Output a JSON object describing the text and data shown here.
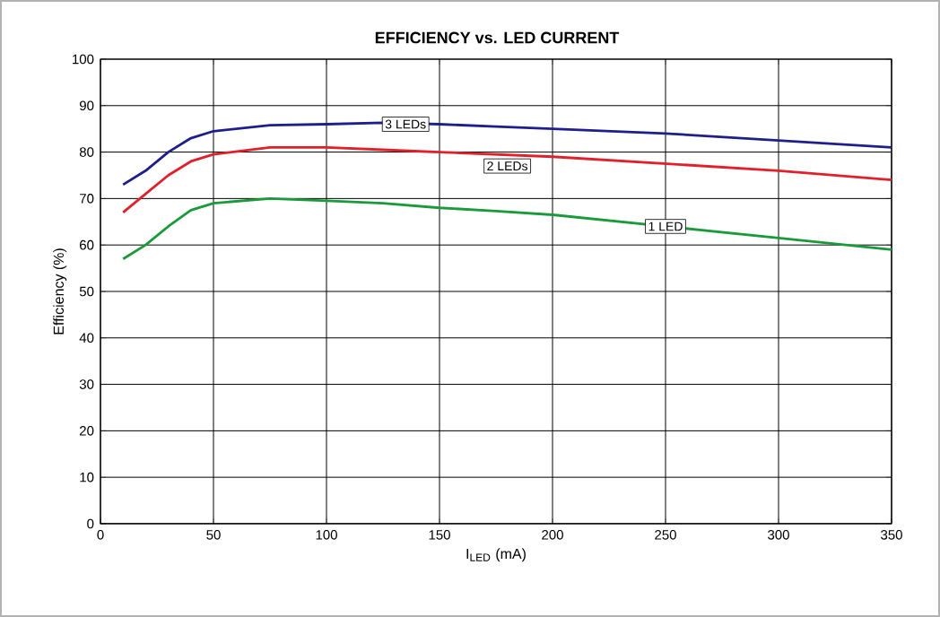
{
  "chart_data": {
    "type": "line",
    "title": "EFFICIENCY vs. LED CURRENT",
    "xlabel": "I$_{LED}$ (mA)",
    "ylabel": "Efficiency (%)",
    "xlim": [
      0,
      350
    ],
    "ylim": [
      0,
      100
    ],
    "xticks": [
      0,
      50,
      100,
      150,
      200,
      250,
      300,
      350
    ],
    "yticks": [
      0,
      10,
      20,
      30,
      40,
      50,
      60,
      70,
      80,
      90,
      100
    ],
    "grid": true,
    "marker": "none",
    "line_style": "solid",
    "x": [
      10,
      20,
      30,
      40,
      50,
      75,
      100,
      125,
      150,
      175,
      200,
      250,
      300,
      350
    ],
    "series": [
      {
        "color": "#1f1f8c",
        "values": [
          73,
          76,
          80,
          83,
          84.5,
          85.8,
          86,
          86.3,
          86,
          85.5,
          85,
          84,
          82.5,
          81
        ]
      },
      {
        "color": "#e0202a",
        "values": [
          67,
          71,
          75,
          78,
          79.5,
          81,
          81,
          80.5,
          80,
          79.5,
          79,
          77.5,
          76,
          74
        ]
      },
      {
        "color": "#1a9a3a",
        "values": [
          57,
          60,
          64,
          67.5,
          69,
          70,
          69.5,
          69,
          68,
          67.3,
          66.5,
          64,
          61.5,
          59
        ]
      }
    ],
    "annotations": [
      {
        "text": "3 LEDs",
        "x": 135,
        "y": 86
      },
      {
        "text": "2 LEDs",
        "x": 180,
        "y": 77
      },
      {
        "text": "1 LED",
        "x": 250,
        "y": 64
      }
    ]
  }
}
